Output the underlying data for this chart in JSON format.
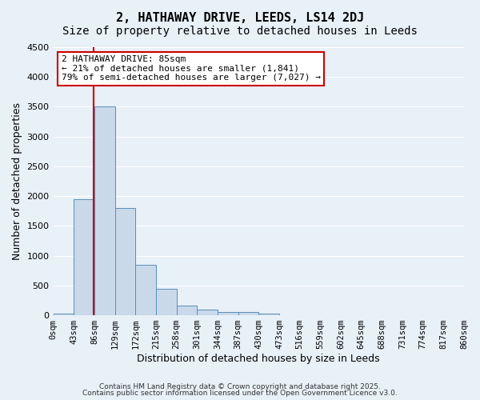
{
  "title": "2, HATHAWAY DRIVE, LEEDS, LS14 2DJ",
  "subtitle": "Size of property relative to detached houses in Leeds",
  "xlabel": "Distribution of detached houses by size in Leeds",
  "ylabel": "Number of detached properties",
  "bar_values": [
    30,
    1950,
    3500,
    1800,
    850,
    450,
    160,
    90,
    55,
    50,
    25,
    0,
    0,
    0,
    0,
    0,
    0,
    0,
    0,
    0
  ],
  "bin_edges": [
    0,
    43,
    86,
    129,
    172,
    215,
    258,
    301,
    344,
    387,
    430,
    473,
    516,
    559,
    602,
    645,
    688,
    731,
    774,
    817,
    860
  ],
  "bar_color": "#c9d9ea",
  "bar_edgecolor": "#5b8db8",
  "background_color": "#e8f0f8",
  "grid_color": "#ffffff",
  "vline_x": 85,
  "vline_color": "#cc0000",
  "ylim": [
    0,
    4500
  ],
  "annotation_text": "2 HATHAWAY DRIVE: 85sqm\n← 21% of detached houses are smaller (1,841)\n79% of semi-detached houses are larger (7,027) →",
  "annotation_box_color": "#cc0000",
  "footnote1": "Contains HM Land Registry data © Crown copyright and database right 2025.",
  "footnote2": "Contains public sector information licensed under the Open Government Licence v3.0.",
  "title_fontsize": 11,
  "subtitle_fontsize": 10,
  "annot_fontsize": 8,
  "tick_fontsize": 7.5,
  "ylabel_fontsize": 9,
  "xlabel_fontsize": 9,
  "footnote_fontsize": 6.5
}
